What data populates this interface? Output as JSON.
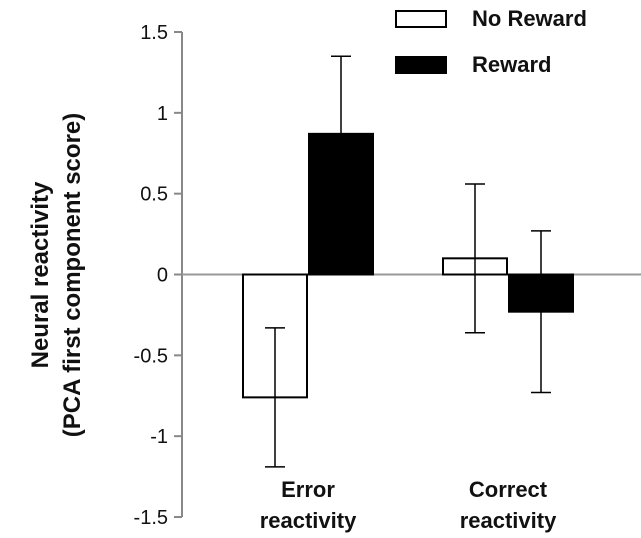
{
  "chart_data": {
    "type": "bar",
    "title": "",
    "ylabel": [
      "Neural reactivity",
      "(PCA first component score)"
    ],
    "xlabel": "",
    "categories": [
      [
        "Error",
        "reactivity"
      ],
      [
        "Correct",
        "reactivity"
      ]
    ],
    "series": [
      {
        "name": "No Reward",
        "values": [
          -0.76,
          0.1
        ],
        "error": [
          0.43,
          0.46
        ],
        "fill": "#ffffff"
      },
      {
        "name": "Reward",
        "values": [
          0.87,
          -0.23
        ],
        "error": [
          0.48,
          0.5
        ],
        "fill": "#000000"
      }
    ],
    "ylim": [
      -1.5,
      1.5
    ],
    "yticks": [
      "1.5",
      "1",
      "0.5",
      "0",
      "-0.5",
      "-1",
      "-1.5"
    ],
    "ytick_values": [
      1.5,
      1,
      0.5,
      0,
      -0.5,
      -1,
      -1.5
    ],
    "grid": false,
    "legend_position": "top-right",
    "colors": {
      "axis": "#888888",
      "zero_line": "#999999",
      "outline": "#000000"
    }
  }
}
